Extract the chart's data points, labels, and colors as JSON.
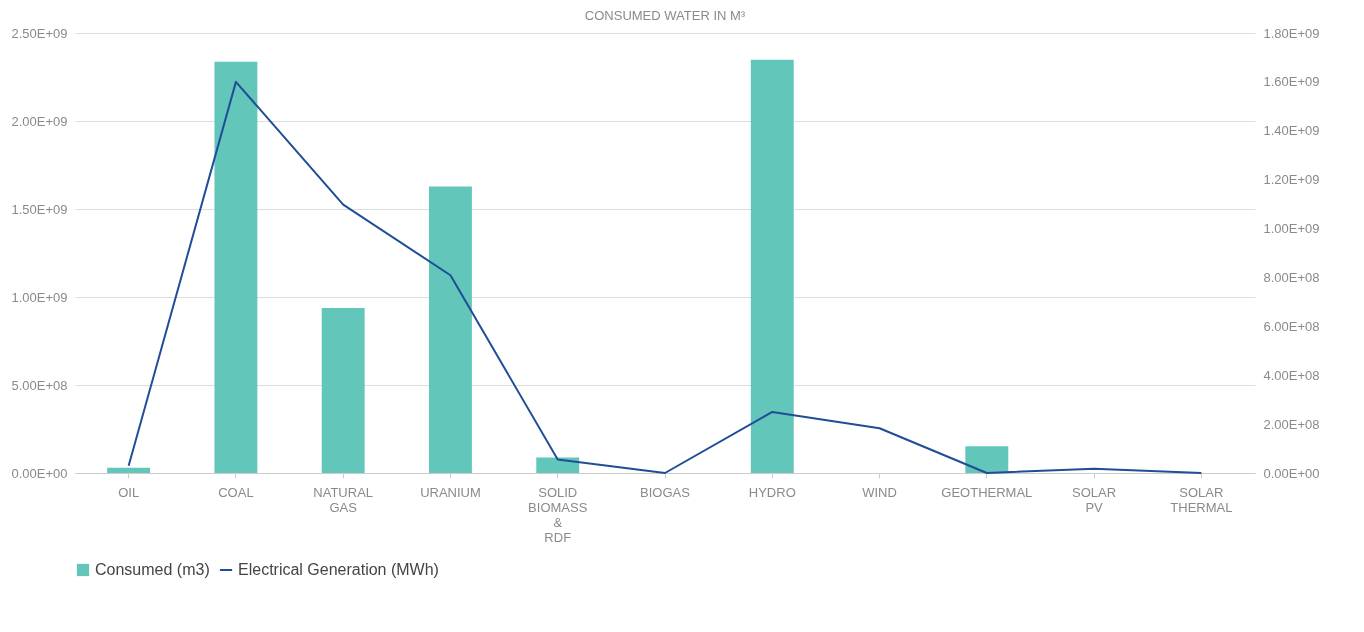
{
  "chart_data": {
    "type": "bar",
    "title": "CONSUMED WATER IN M³",
    "categories": [
      "OIL",
      "COAL",
      "NATURAL GAS",
      "URANIUM",
      "SOLID BIOMASS & RDF",
      "BIOGAS",
      "HYDRO",
      "WIND",
      "GEOTHERMAL",
      "SOLAR PV",
      "SOLAR THERMAL"
    ],
    "series": [
      {
        "name": "Consumed (m3)",
        "color": "#62c6bb",
        "values": [
          30000000,
          2336000000,
          937000000,
          1628000000,
          88000000,
          0,
          2348000000,
          0,
          152000000,
          0,
          0
        ]
      },
      {
        "name": "Electrical Generation (MWh)",
        "type": "line",
        "axis": "y2",
        "color": "#1f4e96",
        "values": [
          30000000,
          1600000000,
          1098000000,
          809000000,
          55000000,
          0,
          250000000,
          183000000,
          0,
          17000000,
          0
        ]
      }
    ],
    "ylim": [
      0,
      2500000000
    ],
    "yticks": [
      {
        "value": 0,
        "label": "0.00E+00"
      },
      {
        "value": 500000000,
        "label": "5.00E+08"
      },
      {
        "value": 1000000000,
        "label": "1.00E+09"
      },
      {
        "value": 1500000000,
        "label": "1.50E+09"
      },
      {
        "value": 2000000000,
        "label": "2.00E+09"
      },
      {
        "value": 2500000000,
        "label": "2.50E+09"
      }
    ],
    "y2lim": [
      0,
      1800000000
    ],
    "y2ticks": [
      {
        "value": 0,
        "label": "0.00E+00"
      },
      {
        "value": 200000000,
        "label": "2.00E+08"
      },
      {
        "value": 400000000,
        "label": "4.00E+08"
      },
      {
        "value": 600000000,
        "label": "6.00E+08"
      },
      {
        "value": 800000000,
        "label": "8.00E+08"
      },
      {
        "value": 1000000000,
        "label": "1.00E+09"
      },
      {
        "value": 1200000000,
        "label": "1.20E+09"
      },
      {
        "value": 1400000000,
        "label": "1.40E+09"
      },
      {
        "value": 1600000000,
        "label": "1.60E+09"
      },
      {
        "value": 1800000000,
        "label": "1.80E+09"
      }
    ],
    "grid": "y",
    "legend": "bottom left"
  }
}
